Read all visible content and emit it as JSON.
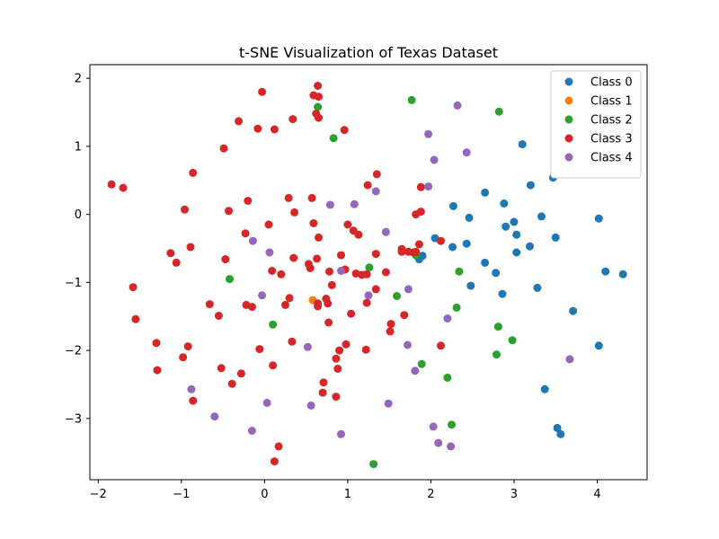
{
  "chart_data": {
    "type": "scatter",
    "title": "t-SNE Visualization of Texas Dataset",
    "xlabel": "",
    "ylabel": "",
    "xlim": [
      -2.1,
      4.6
    ],
    "ylim": [
      -3.9,
      2.2
    ],
    "xticks": [
      -2,
      -1,
      0,
      1,
      2,
      3,
      4
    ],
    "yticks": [
      -3,
      -2,
      -1,
      0,
      1,
      2
    ],
    "grid": false,
    "legend_position": "top-right",
    "series": [
      {
        "name": "Class 0",
        "color": "#1f77b4",
        "points": [
          [
            3.1,
            1.03
          ],
          [
            3.47,
            0.54
          ],
          [
            3.2,
            0.43
          ],
          [
            2.65,
            0.32
          ],
          [
            2.27,
            0.12
          ],
          [
            2.88,
            0.16
          ],
          [
            3.33,
            -0.03
          ],
          [
            2.46,
            -0.05
          ],
          [
            3.0,
            -0.11
          ],
          [
            2.9,
            -0.18
          ],
          [
            3.03,
            -0.3
          ],
          [
            3.5,
            -0.34
          ],
          [
            2.05,
            -0.35
          ],
          [
            2.43,
            -0.43
          ],
          [
            2.26,
            -0.48
          ],
          [
            3.19,
            -0.47
          ],
          [
            3.03,
            -0.56
          ],
          [
            1.9,
            -0.61
          ],
          [
            1.86,
            -0.66
          ],
          [
            2.65,
            -0.71
          ],
          [
            2.78,
            -0.86
          ],
          [
            2.48,
            -1.05
          ],
          [
            3.28,
            -1.08
          ],
          [
            2.86,
            -1.17
          ],
          [
            4.02,
            -0.06
          ],
          [
            4.1,
            -0.84
          ],
          [
            4.31,
            -0.88
          ],
          [
            3.71,
            -1.42
          ],
          [
            4.02,
            -1.93
          ],
          [
            3.37,
            -2.57
          ],
          [
            3.52,
            -3.14
          ],
          [
            3.56,
            -3.23
          ]
        ]
      },
      {
        "name": "Class 1",
        "color": "#ff7f0e",
        "points": [
          [
            0.58,
            -1.26
          ]
        ]
      },
      {
        "name": "Class 2",
        "color": "#2ca02c",
        "points": [
          [
            1.77,
            1.68
          ],
          [
            2.82,
            1.51
          ],
          [
            0.64,
            1.58
          ],
          [
            0.83,
            1.12
          ],
          [
            1.26,
            -0.78
          ],
          [
            2.34,
            -0.84
          ],
          [
            -0.42,
            -0.95
          ],
          [
            1.59,
            -1.2
          ],
          [
            2.31,
            -1.37
          ],
          [
            0.1,
            -1.62
          ],
          [
            2.81,
            -1.65
          ],
          [
            2.98,
            -1.85
          ],
          [
            2.79,
            -2.06
          ],
          [
            1.89,
            -2.2
          ],
          [
            2.2,
            -2.4
          ],
          [
            2.25,
            -3.09
          ],
          [
            1.31,
            -3.67
          ],
          [
            1.82,
            -0.6
          ]
        ]
      },
      {
        "name": "Class 3",
        "color": "#d62728",
        "points": [
          [
            0.64,
            1.89
          ],
          [
            -0.03,
            1.8
          ],
          [
            0.59,
            1.75
          ],
          [
            0.65,
            1.73
          ],
          [
            0.62,
            1.48
          ],
          [
            0.65,
            1.42
          ],
          [
            0.34,
            1.4
          ],
          [
            -0.31,
            1.37
          ],
          [
            -0.08,
            1.26
          ],
          [
            0.12,
            1.25
          ],
          [
            0.96,
            1.24
          ],
          [
            -0.49,
            0.97
          ],
          [
            -1.84,
            0.44
          ],
          [
            -1.7,
            0.39
          ],
          [
            -0.86,
            0.61
          ],
          [
            1.35,
            0.59
          ],
          [
            1.24,
            0.43
          ],
          [
            1.88,
            0.4
          ],
          [
            0.29,
            0.24
          ],
          [
            0.57,
            0.24
          ],
          [
            -0.2,
            0.2
          ],
          [
            -0.96,
            0.07
          ],
          [
            -0.43,
            0.05
          ],
          [
            0.36,
            0.03
          ],
          [
            1.82,
            0.0
          ],
          [
            1.88,
            0.04
          ],
          [
            0.05,
            -0.15
          ],
          [
            0.59,
            -0.13
          ],
          [
            1.0,
            -0.15
          ],
          [
            1.07,
            -0.24
          ],
          [
            -0.23,
            -0.28
          ],
          [
            0.65,
            -0.34
          ],
          [
            1.13,
            -0.3
          ],
          [
            2.12,
            -0.39
          ],
          [
            1.86,
            -0.44
          ],
          [
            -0.89,
            -0.48
          ],
          [
            1.65,
            -0.51
          ],
          [
            1.65,
            -0.55
          ],
          [
            1.73,
            -0.55
          ],
          [
            1.79,
            -0.56
          ],
          [
            1.82,
            -0.55
          ],
          [
            0.92,
            -0.6
          ],
          [
            1.34,
            -0.58
          ],
          [
            -1.13,
            -0.57
          ],
          [
            -1.06,
            -0.71
          ],
          [
            -0.47,
            -0.66
          ],
          [
            0.63,
            -0.65
          ],
          [
            0.35,
            -0.64
          ],
          [
            0.53,
            -0.73
          ],
          [
            0.55,
            -0.79
          ],
          [
            0.09,
            -0.83
          ],
          [
            0.2,
            -0.88
          ],
          [
            0.78,
            -0.84
          ],
          [
            0.97,
            -0.81
          ],
          [
            1.1,
            -0.87
          ],
          [
            1.17,
            -0.89
          ],
          [
            1.23,
            -0.88
          ],
          [
            1.46,
            -0.85
          ],
          [
            0.81,
            -1.04
          ],
          [
            1.34,
            -1.1
          ],
          [
            -1.58,
            -1.07
          ],
          [
            0.3,
            -1.23
          ],
          [
            0.74,
            -1.24
          ],
          [
            0.76,
            -1.31
          ],
          [
            0.64,
            -1.31
          ],
          [
            0.64,
            -1.35
          ],
          [
            0.25,
            -1.33
          ],
          [
            -0.66,
            -1.32
          ],
          [
            -0.22,
            -1.33
          ],
          [
            -0.15,
            -1.36
          ],
          [
            1.23,
            -1.3
          ],
          [
            1.04,
            -1.46
          ],
          [
            -1.55,
            -1.54
          ],
          [
            -0.55,
            -1.49
          ],
          [
            1.68,
            -1.48
          ],
          [
            0.77,
            -1.59
          ],
          [
            1.52,
            -1.61
          ],
          [
            1.51,
            -1.72
          ],
          [
            -1.3,
            -1.89
          ],
          [
            -0.92,
            -1.94
          ],
          [
            0.33,
            -1.87
          ],
          [
            0.98,
            -1.91
          ],
          [
            2.12,
            -1.93
          ],
          [
            -0.06,
            -1.98
          ],
          [
            0.9,
            -2.0
          ],
          [
            1.22,
            -1.99
          ],
          [
            -0.98,
            -2.1
          ],
          [
            0.86,
            -2.12
          ],
          [
            0.1,
            -2.22
          ],
          [
            -1.29,
            -2.29
          ],
          [
            -0.52,
            -2.26
          ],
          [
            -0.28,
            -2.34
          ],
          [
            0.88,
            -2.27
          ],
          [
            -0.39,
            -2.49
          ],
          [
            0.71,
            -2.47
          ],
          [
            0.7,
            -2.62
          ],
          [
            -0.86,
            -2.74
          ],
          [
            0.86,
            -2.68
          ],
          [
            0.17,
            -3.41
          ],
          [
            0.12,
            -3.63
          ]
        ]
      },
      {
        "name": "Class 4",
        "color": "#9467bd",
        "points": [
          [
            2.32,
            1.6
          ],
          [
            1.97,
            1.18
          ],
          [
            2.04,
            0.8
          ],
          [
            2.43,
            0.91
          ],
          [
            1.97,
            0.41
          ],
          [
            1.34,
            0.34
          ],
          [
            0.79,
            0.14
          ],
          [
            1.08,
            0.15
          ],
          [
            1.46,
            -0.26
          ],
          [
            -0.14,
            -0.39
          ],
          [
            0.06,
            -0.56
          ],
          [
            0.92,
            -0.83
          ],
          [
            1.73,
            -1.1
          ],
          [
            -0.03,
            -1.19
          ],
          [
            1.25,
            -1.19
          ],
          [
            2.2,
            -1.53
          ],
          [
            1.72,
            -1.92
          ],
          [
            0.52,
            -1.95
          ],
          [
            1.81,
            -2.3
          ],
          [
            3.67,
            -2.13
          ],
          [
            -0.88,
            -2.57
          ],
          [
            0.03,
            -2.77
          ],
          [
            1.49,
            -2.78
          ],
          [
            0.56,
            -2.81
          ],
          [
            -0.6,
            -2.97
          ],
          [
            2.03,
            -3.12
          ],
          [
            -0.15,
            -3.18
          ],
          [
            0.92,
            -3.23
          ],
          [
            2.09,
            -3.36
          ],
          [
            2.24,
            -3.41
          ]
        ]
      }
    ]
  }
}
